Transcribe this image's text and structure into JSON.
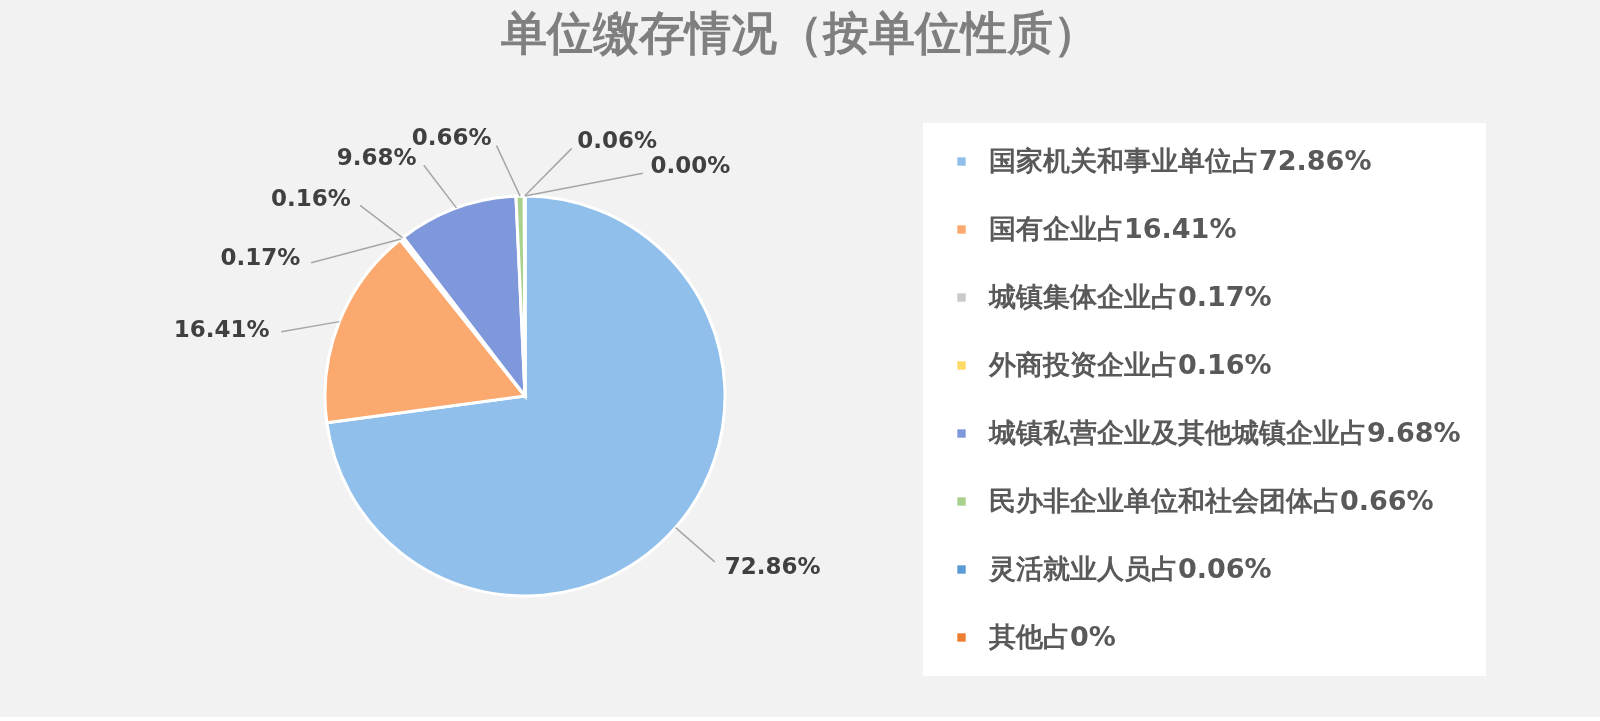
{
  "chart_data": {
    "type": "pie",
    "title": "单位缴存情况（按单位性质）",
    "categories": [
      "国家机关和事业单位占72.86%",
      "国有企业占16.41%",
      "城镇集体企业占0.17%",
      "外商投资企业占0.16%",
      "城镇私营企业及其他城镇企业占9.68%",
      "民办非企业单位和社会团体占0.66%",
      "灵活就业人员占0.06%",
      "其他占0%"
    ],
    "values": [
      72.86,
      16.41,
      0.17,
      0.16,
      9.68,
      0.66,
      0.06,
      0.0
    ],
    "colors": [
      "#8fbfea",
      "#fba96e",
      "#c9c9c9",
      "#ffd966",
      "#7f98dc",
      "#a9d18e",
      "#5b9bd5",
      "#ed7d31"
    ],
    "value_labels": [
      "72.86%",
      "16.41%",
      "0.17%",
      "0.16%",
      "9.68%",
      "0.66%",
      "0.06%",
      "0.00%"
    ],
    "legend": "right"
  }
}
